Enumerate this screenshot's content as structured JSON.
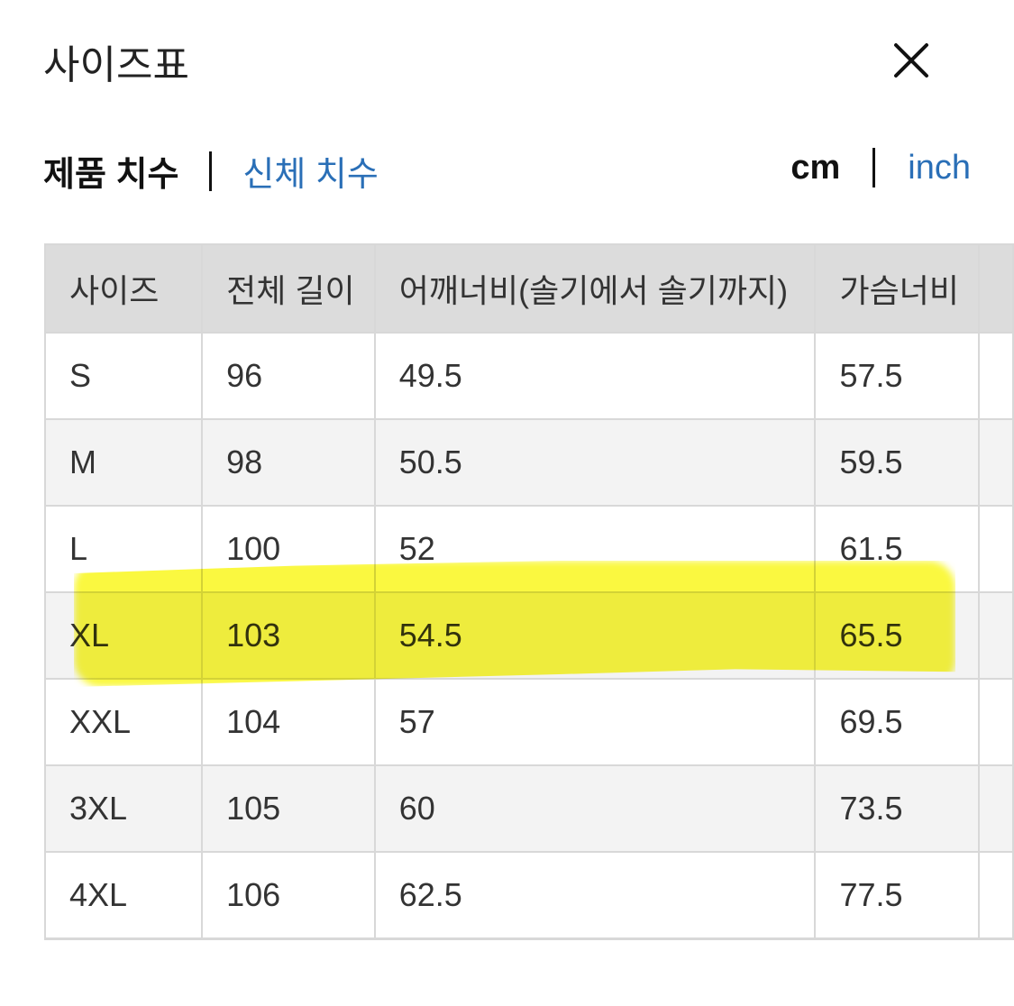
{
  "title": "사이즈표",
  "close_icon": "close-icon",
  "measure_tabs": [
    {
      "label": "제품 치수",
      "active": true
    },
    {
      "label": "신체 치수",
      "active": false
    }
  ],
  "units": [
    {
      "label": "cm",
      "active": true
    },
    {
      "label": "inch",
      "active": false
    }
  ],
  "colors": {
    "link": "#2a6fb7",
    "header_bg": "#dcdcdc",
    "alt_row_bg": "#f3f3f3",
    "highlight": "#f8f600"
  },
  "table": {
    "headers": [
      "사이즈",
      "전체 길이",
      "어깨너비(솔기에서 솔기까지)",
      "가슴너비"
    ],
    "rows": [
      [
        "S",
        "96",
        "49.5",
        "57.5"
      ],
      [
        "M",
        "98",
        "50.5",
        "59.5"
      ],
      [
        "L",
        "100",
        "52",
        "61.5"
      ],
      [
        "XL",
        "103",
        "54.5",
        "65.5"
      ],
      [
        "XXL",
        "104",
        "57",
        "69.5"
      ],
      [
        "3XL",
        "105",
        "60",
        "73.5"
      ],
      [
        "4XL",
        "106",
        "62.5",
        "77.5"
      ]
    ],
    "highlighted_row": "XL"
  }
}
